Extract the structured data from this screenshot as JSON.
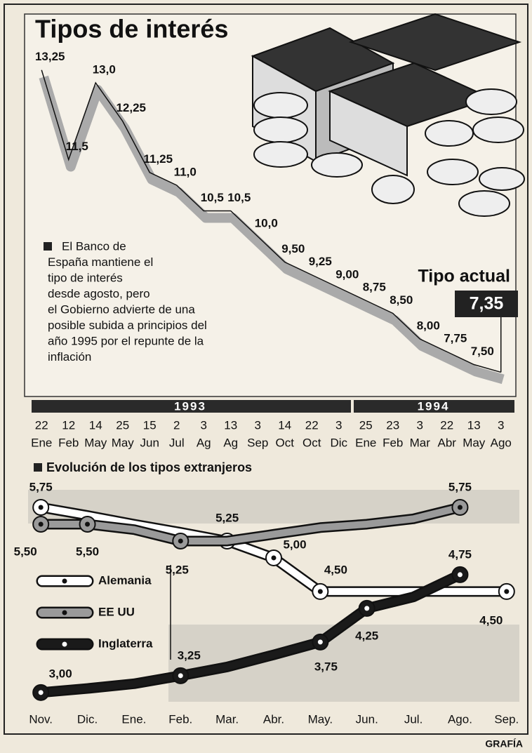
{
  "title": "Tipos de interés",
  "footer": "GRAFÍA",
  "charts": [
    {
      "type": "line",
      "annotation": [
        "El Banco de",
        "España mantiene el",
        "tipo de interés",
        "desde agosto, pero",
        "el Gobierno advierte de una",
        "posible subida a principios del",
        "año 1995 por el repunte de la",
        "inflación"
      ],
      "current_label": "Tipo actual",
      "years": [
        "1993",
        "1994"
      ],
      "categories": [
        [
          "22",
          "Ene"
        ],
        [
          "12",
          "Feb"
        ],
        [
          "14",
          "May"
        ],
        [
          "25",
          "May"
        ],
        [
          "15",
          "Jun"
        ],
        [
          "2",
          "Jul"
        ],
        [
          "3",
          "Ag"
        ],
        [
          "13",
          "Ag"
        ],
        [
          "3",
          "Sep"
        ],
        [
          "14",
          "Oct"
        ],
        [
          "22",
          "Oct"
        ],
        [
          "3",
          "Dic"
        ],
        [
          "25",
          "Ene"
        ],
        [
          "23",
          "Feb"
        ],
        [
          "3",
          "Mar"
        ],
        [
          "22",
          "Abr"
        ],
        [
          "13",
          "May"
        ],
        [
          "3",
          "Ago"
        ]
      ],
      "values": [
        13.25,
        11.5,
        13.0,
        12.25,
        11.25,
        11.0,
        10.5,
        10.5,
        10.0,
        9.5,
        9.25,
        9.0,
        8.75,
        8.5,
        8.0,
        7.75,
        7.5,
        7.35
      ],
      "value_labels": [
        "13,25",
        "11,5",
        "13,0",
        "12,25",
        "11,25",
        "11,0",
        "10,5",
        "10,5",
        "10,0",
        "9,50",
        "9,25",
        "9,00",
        "8,75",
        "8,50",
        "8,00",
        "7,75",
        "7,50",
        "7,35"
      ],
      "color": "#111111",
      "ylim": [
        7,
        14
      ]
    },
    {
      "type": "line",
      "title": "Evolución de los tipos extranjeros",
      "categories": [
        "Nov.",
        "Dic.",
        "Ene.",
        "Feb.",
        "Mar.",
        "Abr.",
        "May.",
        "Jun.",
        "Jul.",
        "Ago.",
        "Sep."
      ],
      "ylim": [
        2.8,
        6.0
      ],
      "series": [
        {
          "name": "Alemania",
          "color": "#ffffff",
          "values": [
            5.75,
            5.63,
            5.5,
            5.38,
            5.25,
            5.0,
            4.5,
            4.5,
            4.5,
            4.5,
            4.5
          ],
          "value_labels": [
            "5,75",
            null,
            null,
            null,
            "5,25",
            "5,00",
            "4,50",
            null,
            null,
            null,
            "4,50"
          ]
        },
        {
          "name": "EE UU",
          "color": "#9a9a9a",
          "values": [
            5.5,
            5.5,
            5.42,
            5.25,
            5.25,
            5.35,
            5.45,
            5.5,
            5.58,
            5.75,
            null
          ],
          "value_labels": [
            "5,50",
            "5,50",
            null,
            "5,25",
            null,
            null,
            null,
            null,
            null,
            "5,75",
            null
          ]
        },
        {
          "name": "Inglaterra",
          "color": "#1a1a1a",
          "values": [
            3.0,
            3.06,
            3.13,
            3.25,
            3.38,
            3.56,
            3.75,
            4.25,
            4.42,
            4.75,
            null
          ],
          "value_labels": [
            "3,00",
            null,
            null,
            "3,25",
            null,
            null,
            "3,75",
            "4,25",
            null,
            "4,75",
            null
          ]
        }
      ]
    }
  ]
}
